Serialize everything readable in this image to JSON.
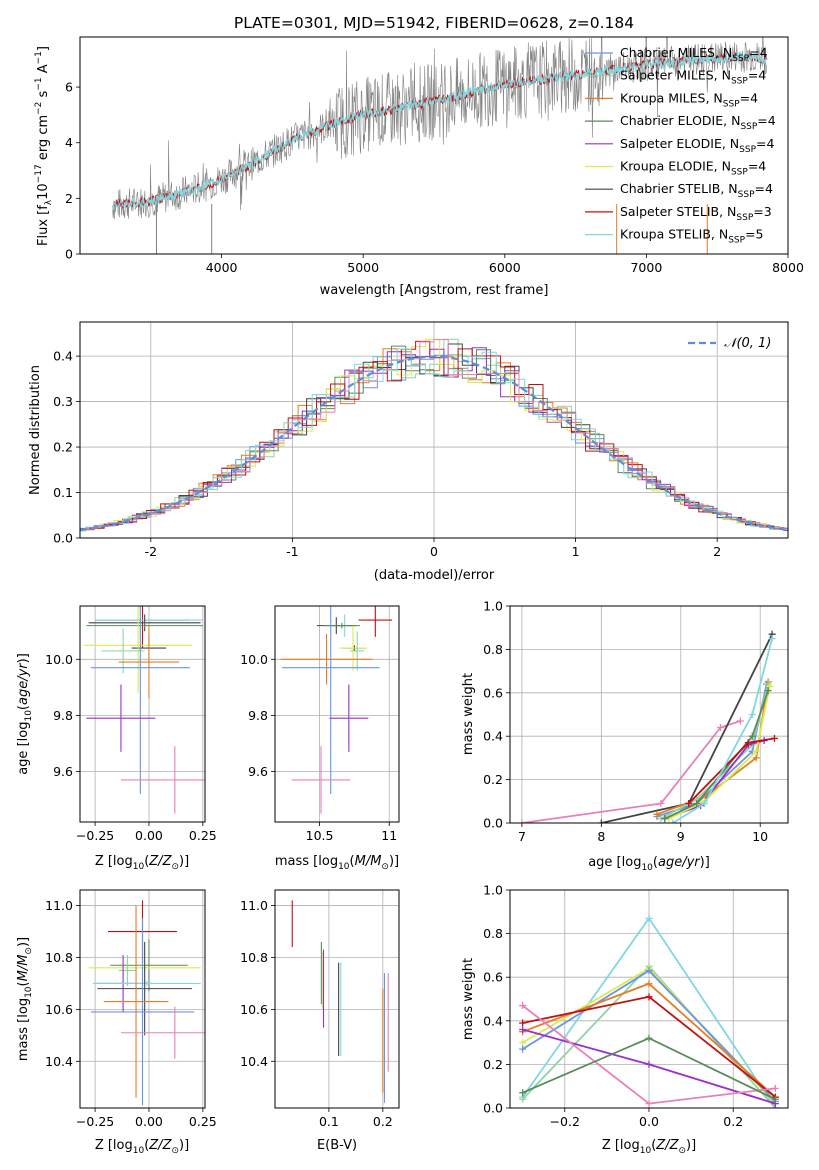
{
  "figure": {
    "title": "PLATE=0301, MJD=51942, FIBERID=0628, z=0.184"
  },
  "colors": {
    "Chabrier MILES": "#6a93e8",
    "Salpeter MILES": "#8fd3a8",
    "Kroupa MILES": "#e67c22",
    "Chabrier ELODIE": "#5a8a5a",
    "Salpeter ELODIE": "#9b30c8",
    "Kroupa ELODIE": "#d8ec50",
    "Chabrier STELIB": "#444444",
    "Salpeter STELIB": "#c01010",
    "Kroupa STELIB": "#7fd8e0",
    "pink": "#e880b8",
    "data": "#808080",
    "gauss": "#5b8fd8"
  },
  "chart_data": [
    {
      "id": "spectrum",
      "type": "line",
      "xlabel": "wavelength [Angstrom, rest frame]",
      "ylabel": "Flux [f_λ 10^-17 erg cm^-2 s^-1 A^-1]",
      "xlim": [
        3000,
        8000
      ],
      "ylim": [
        0,
        7.8
      ],
      "xticks": [
        4000,
        5000,
        6000,
        7000,
        8000
      ],
      "yticks": [
        0,
        2,
        4,
        6
      ],
      "legend_position": "top-right",
      "legend": [
        {
          "label": "Chabrier MILES, N_SSP=4",
          "color": "#6a93e8"
        },
        {
          "label": "Salpeter MILES, N_SSP=4",
          "color": "#8fd3a8"
        },
        {
          "label": "Kroupa MILES, N_SSP=4",
          "color": "#e67c22"
        },
        {
          "label": "Chabrier ELODIE, N_SSP=4",
          "color": "#5a8a5a"
        },
        {
          "label": "Salpeter ELODIE, N_SSP=4",
          "color": "#9b30c8"
        },
        {
          "label": "Kroupa ELODIE, N_SSP=4",
          "color": "#d8ec50"
        },
        {
          "label": "Chabrier STELIB, N_SSP=4",
          "color": "#444444"
        },
        {
          "label": "Salpeter STELIB, N_SSP=3",
          "color": "#c01010"
        },
        {
          "label": "Kroupa STELIB, N_SSP=5",
          "color": "#7fd8e0"
        }
      ],
      "continuum": {
        "x": [
          3230,
          3500,
          3800,
          4000,
          4200,
          4500,
          4800,
          5000,
          5300,
          5600,
          6000,
          6300,
          6600,
          7000,
          7400,
          7700,
          7850
        ],
        "y": [
          1.75,
          1.9,
          2.3,
          2.7,
          3.2,
          4.1,
          4.7,
          5.0,
          5.3,
          5.6,
          6.1,
          6.3,
          6.5,
          6.8,
          7.0,
          7.1,
          7.0
        ]
      }
    },
    {
      "id": "residuals",
      "type": "line",
      "xlabel": "(data-model)/error",
      "ylabel": "Normed distribution",
      "xlim": [
        -2.5,
        2.5
      ],
      "ylim": [
        0,
        0.475
      ],
      "xticks": [
        -2,
        -1,
        0,
        1,
        2
      ],
      "yticks": [
        0.0,
        0.1,
        0.2,
        0.3,
        0.4
      ],
      "grid": true,
      "legend_position": "top-right",
      "legend": [
        {
          "label": "𝒩(0, 1)",
          "color": "#5b8fd8"
        }
      ],
      "bin_width": 0.1
    },
    {
      "id": "age-vs-z",
      "type": "scatter",
      "xlabel": "Z [log10(Z/Z⊙)]",
      "ylabel": "age [log10(age/yr)]",
      "xlim": [
        -0.32,
        0.26
      ],
      "ylim": [
        9.42,
        10.19
      ],
      "xticks": [
        -0.25,
        0.0,
        0.25
      ],
      "xtick_labels": [
        "−0.25",
        "0.00",
        "0.25"
      ],
      "yticks": [
        9.6,
        9.8,
        10.0
      ],
      "grid": true,
      "points": [
        {
          "x": -0.03,
          "y": 10.14,
          "xerr": 0.22,
          "yerr": 0.1,
          "color": "#c01010"
        },
        {
          "x": 0.0,
          "y": 10.14,
          "xerr": 0.25,
          "yerr": 0.01,
          "color": "#7fd8e0"
        },
        {
          "x": -0.02,
          "y": 10.13,
          "xerr": 0.26,
          "yerr": 0.03,
          "color": "#444444"
        },
        {
          "x": -0.02,
          "y": 10.12,
          "xerr": 0.27,
          "yerr": 0.01,
          "color": "#5a8a5a"
        },
        {
          "x": 0.0,
          "y": 10.04,
          "xerr": 0.08,
          "yerr": 0.05,
          "color": "#444444"
        },
        {
          "x": -0.05,
          "y": 10.05,
          "xerr": 0.25,
          "yerr": 0.17,
          "color": "#d8ec50"
        },
        {
          "x": -0.12,
          "y": 10.03,
          "xerr": 0.1,
          "yerr": 0.08,
          "color": "#8fd3a8"
        },
        {
          "x": 0.0,
          "y": 9.99,
          "xerr": 0.14,
          "yerr": 0.13,
          "color": "#e67c22"
        },
        {
          "x": -0.04,
          "y": 9.97,
          "xerr": 0.23,
          "yerr": 0.45,
          "color": "#6a93e8"
        },
        {
          "x": -0.13,
          "y": 9.79,
          "xerr": 0.16,
          "yerr": 0.12,
          "color": "#9b30c8"
        },
        {
          "x": 0.12,
          "y": 9.57,
          "xerr": 0.25,
          "yerr": 0.12,
          "color": "#e880b8"
        }
      ]
    },
    {
      "id": "age-vs-mass",
      "type": "scatter",
      "xlabel": "mass [log10(M/M⊙)]",
      "ylabel": "",
      "xlim": [
        10.18,
        11.07
      ],
      "ylim": [
        9.42,
        10.19
      ],
      "xticks": [
        10.5,
        11.0
      ],
      "yticks": [
        9.6,
        9.8,
        10.0
      ],
      "grid": true,
      "points": [
        {
          "x": 10.9,
          "y": 10.14,
          "xerr": 0.12,
          "yerr": 0.06,
          "color": "#c01010"
        },
        {
          "x": 10.68,
          "y": 10.12,
          "xerr": 0.08,
          "yerr": 0.04,
          "color": "#7fd8e0"
        },
        {
          "x": 10.62,
          "y": 10.12,
          "xerr": 0.14,
          "yerr": 0.03,
          "color": "#444444"
        },
        {
          "x": 10.66,
          "y": 10.12,
          "xerr": 0.13,
          "yerr": 0.01,
          "color": "#5a8a5a"
        },
        {
          "x": 10.75,
          "y": 10.04,
          "xerr": 0.08,
          "yerr": 0.01,
          "color": "#444444"
        },
        {
          "x": 10.74,
          "y": 10.04,
          "xerr": 0.1,
          "yerr": 0.08,
          "color": "#d8ec50"
        },
        {
          "x": 10.77,
          "y": 10.03,
          "xerr": 0.05,
          "yerr": 0.07,
          "color": "#8fd3a8"
        },
        {
          "x": 10.55,
          "y": 10.0,
          "xerr": 0.33,
          "yerr": 0.09,
          "color": "#e67c22"
        },
        {
          "x": 10.58,
          "y": 9.97,
          "xerr": 0.35,
          "yerr": 0.45,
          "color": "#6a93e8"
        },
        {
          "x": 10.71,
          "y": 9.79,
          "xerr": 0.14,
          "yerr": 0.12,
          "color": "#9b30c8"
        },
        {
          "x": 10.51,
          "y": 9.57,
          "xerr": 0.21,
          "yerr": 0.12,
          "color": "#e880b8"
        }
      ]
    },
    {
      "id": "massweight-vs-age",
      "type": "line",
      "xlabel": "age [log10(age/yr)]",
      "ylabel": "mass weight",
      "xlim": [
        6.85,
        10.35
      ],
      "ylim": [
        0,
        1.0
      ],
      "xticks": [
        7,
        8,
        9,
        10
      ],
      "yticks": [
        0.0,
        0.2,
        0.4,
        0.6,
        0.8,
        1.0
      ],
      "grid": true,
      "series": [
        {
          "x": [
            7.0,
            8.75,
            9.5,
            9.75
          ],
          "y": [
            0.0,
            0.09,
            0.44,
            0.47
          ],
          "color": "#e880b8"
        },
        {
          "x": [
            8.0,
            9.1,
            10.15
          ],
          "y": [
            0.0,
            0.09,
            0.87
          ],
          "color": "#444444"
        },
        {
          "x": [
            8.7,
            9.2,
            9.9,
            10.08
          ],
          "y": [
            0.03,
            0.09,
            0.33,
            0.64
          ],
          "color": "#6a93e8"
        },
        {
          "x": [
            8.7,
            9.3,
            9.95,
            10.1
          ],
          "y": [
            0.04,
            0.12,
            0.3,
            0.65
          ],
          "color": "#e67c22"
        },
        {
          "x": [
            8.75,
            9.2,
            9.9,
            10.1
          ],
          "y": [
            0.02,
            0.11,
            0.36,
            0.64
          ],
          "color": "#8fd3a8"
        },
        {
          "x": [
            8.8,
            9.25,
            9.85,
            10.05
          ],
          "y": [
            0.02,
            0.08,
            0.36,
            0.38
          ],
          "color": "#9b30c8"
        },
        {
          "x": [
            8.85,
            9.3,
            9.95,
            10.12
          ],
          "y": [
            0.02,
            0.1,
            0.33,
            0.63
          ],
          "color": "#d8ec50"
        },
        {
          "x": [
            8.8,
            9.2,
            9.9,
            10.1
          ],
          "y": [
            0.02,
            0.09,
            0.4,
            0.61
          ],
          "color": "#5a8a5a"
        },
        {
          "x": [
            9.1,
            9.85,
            10.18
          ],
          "y": [
            0.09,
            0.37,
            0.39
          ],
          "color": "#c01010"
        },
        {
          "x": [
            8.9,
            9.3,
            9.9,
            10.15
          ],
          "y": [
            0.0,
            0.09,
            0.5,
            0.85
          ],
          "color": "#7fd8e0"
        }
      ]
    },
    {
      "id": "mass-vs-z",
      "type": "scatter",
      "xlabel": "Z [log10(Z/Z⊙)]",
      "ylabel": "mass [log10(M/M⊙)]",
      "xlim": [
        -0.32,
        0.26
      ],
      "ylim": [
        10.22,
        11.06
      ],
      "xticks": [
        -0.25,
        0.0,
        0.25
      ],
      "xtick_labels": [
        "−0.25",
        "0.00",
        "0.25"
      ],
      "yticks": [
        10.4,
        10.6,
        10.8,
        11.0
      ],
      "grid": true,
      "points": [
        {
          "x": -0.03,
          "y": 10.9,
          "xerr": 0.16,
          "yerr": 0.12,
          "color": "#c01010"
        },
        {
          "x": 0.0,
          "y": 10.77,
          "xerr": 0.18,
          "yerr": 0.1,
          "color": "#5a8a5a"
        },
        {
          "x": -0.02,
          "y": 10.76,
          "xerr": 0.26,
          "yerr": 0.01,
          "color": "#d8ec50"
        },
        {
          "x": -0.1,
          "y": 10.75,
          "xerr": 0.04,
          "yerr": 0.06,
          "color": "#8fd3a8"
        },
        {
          "x": -0.12,
          "y": 10.7,
          "xerr": 0.13,
          "yerr": 0.11,
          "color": "#9b30c8"
        },
        {
          "x": -0.01,
          "y": 10.7,
          "xerr": 0.25,
          "yerr": 0.01,
          "color": "#7fd8e0"
        },
        {
          "x": -0.02,
          "y": 10.68,
          "xerr": 0.22,
          "yerr": 0.18,
          "color": "#444444"
        },
        {
          "x": -0.06,
          "y": 10.63,
          "xerr": 0.15,
          "yerr": 0.37,
          "color": "#e67c22"
        },
        {
          "x": -0.03,
          "y": 10.59,
          "xerr": 0.24,
          "yerr": 0.36,
          "color": "#6a93e8"
        },
        {
          "x": 0.12,
          "y": 10.51,
          "xerr": 0.25,
          "yerr": 0.1,
          "color": "#e880b8"
        }
      ]
    },
    {
      "id": "mass-vs-ebv",
      "type": "scatter",
      "xlabel": "E(B-V)",
      "ylabel": "",
      "xlim": [
        0.0,
        0.23
      ],
      "ylim": [
        10.22,
        11.06
      ],
      "xticks": [
        0.1,
        0.2
      ],
      "yticks": [
        10.4,
        10.6,
        10.8,
        11.0
      ],
      "grid": true,
      "points": [
        {
          "x": 0.032,
          "y": 10.93,
          "xerr": 0,
          "yerr": 0.09,
          "color": "#c01010"
        },
        {
          "x": 0.086,
          "y": 10.74,
          "xerr": 0,
          "yerr": 0.12,
          "color": "#5a8a5a"
        },
        {
          "x": 0.088,
          "y": 10.71,
          "xerr": 0,
          "yerr": 0.11,
          "color": "#d8ec50"
        },
        {
          "x": 0.09,
          "y": 10.68,
          "xerr": 0,
          "yerr": 0.15,
          "color": "#9b30c8"
        },
        {
          "x": 0.118,
          "y": 10.6,
          "xerr": 0,
          "yerr": 0.18,
          "color": "#444444"
        },
        {
          "x": 0.122,
          "y": 10.6,
          "xerr": 0,
          "yerr": 0.18,
          "color": "#7fd8e0"
        },
        {
          "x": 0.2,
          "y": 10.48,
          "xerr": 0,
          "yerr": 0.2,
          "color": "#e67c22"
        },
        {
          "x": 0.203,
          "y": 10.49,
          "xerr": 0,
          "yerr": 0.25,
          "color": "#6a93e8"
        },
        {
          "x": 0.21,
          "y": 10.55,
          "xerr": 0,
          "yerr": 0.19,
          "color": "#e880b8"
        }
      ]
    },
    {
      "id": "massweight-vs-z",
      "type": "line",
      "xlabel": "Z [log10(Z/Z⊙)]",
      "ylabel": "mass weight",
      "xlim": [
        -0.33,
        0.33
      ],
      "ylim": [
        0,
        1.0
      ],
      "xticks": [
        -0.2,
        0.0,
        0.2
      ],
      "xtick_labels": [
        "−0.2",
        "0.0",
        "0.2"
      ],
      "yticks": [
        0.0,
        0.2,
        0.4,
        0.6,
        0.8,
        1.0
      ],
      "grid": true,
      "series": [
        {
          "x": [
            -0.3,
            0.0,
            0.3
          ],
          "y": [
            0.05,
            0.87,
            0.0
          ],
          "color": "#7fd8e0"
        },
        {
          "x": [
            -0.3,
            0.0,
            0.3
          ],
          "y": [
            0.04,
            0.65,
            0.0
          ],
          "color": "#8fd3a8"
        },
        {
          "x": [
            -0.3,
            0.0,
            0.3
          ],
          "y": [
            0.3,
            0.64,
            0.02
          ],
          "color": "#d8ec50"
        },
        {
          "x": [
            -0.3,
            0.0,
            0.3
          ],
          "y": [
            0.27,
            0.63,
            0.03
          ],
          "color": "#6a93e8"
        },
        {
          "x": [
            -0.3,
            0.0,
            0.3
          ],
          "y": [
            0.35,
            0.57,
            0.05
          ],
          "color": "#e67c22"
        },
        {
          "x": [
            -0.3,
            0.0,
            0.3
          ],
          "y": [
            0.39,
            0.51,
            0.05
          ],
          "color": "#c01010"
        },
        {
          "x": [
            -0.3,
            0.0,
            0.3
          ],
          "y": [
            0.36,
            0.2,
            0.02
          ],
          "color": "#9b30c8"
        },
        {
          "x": [
            -0.3,
            0.0,
            0.3
          ],
          "y": [
            0.47,
            0.02,
            0.09
          ],
          "color": "#e880b8"
        },
        {
          "x": [
            -0.3,
            0.0,
            0.3
          ],
          "y": [
            0.07,
            0.32,
            0.04
          ],
          "color": "#5a8a5a"
        }
      ]
    }
  ]
}
